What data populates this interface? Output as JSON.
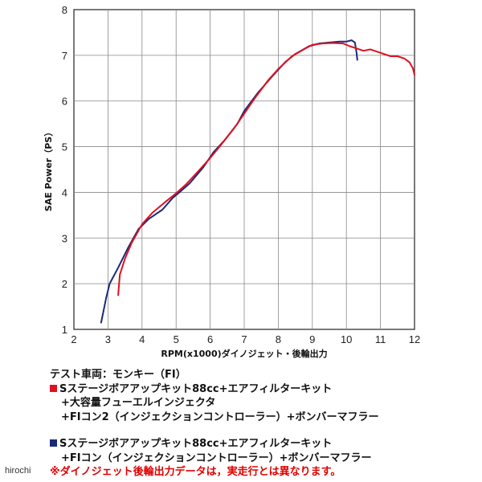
{
  "chart_data": {
    "type": "line",
    "xlabel": "RPM(x1000)ダイノジェット・後輪出力",
    "ylabel": "SAE Power（PS）",
    "xlim": [
      2,
      12
    ],
    "ylim": [
      1,
      8
    ],
    "x_ticks": [
      "2",
      "3",
      "4",
      "5",
      "6",
      "7",
      "8",
      "9",
      "10",
      "11",
      "12"
    ],
    "y_ticks": [
      "1",
      "2",
      "3",
      "4",
      "5",
      "6",
      "7",
      "8"
    ],
    "grid": true,
    "series": [
      {
        "color": "#e01020",
        "points": [
          [
            3.3,
            1.75
          ],
          [
            3.35,
            2.2
          ],
          [
            3.5,
            2.55
          ],
          [
            3.7,
            2.9
          ],
          [
            4.0,
            3.3
          ],
          [
            4.3,
            3.55
          ],
          [
            4.7,
            3.8
          ],
          [
            5.0,
            3.98
          ],
          [
            5.3,
            4.18
          ],
          [
            5.6,
            4.42
          ],
          [
            6.0,
            4.75
          ],
          [
            6.3,
            5.02
          ],
          [
            6.7,
            5.4
          ],
          [
            7.0,
            5.72
          ],
          [
            7.3,
            6.05
          ],
          [
            7.7,
            6.45
          ],
          [
            8.0,
            6.7
          ],
          [
            8.4,
            6.98
          ],
          [
            8.8,
            7.15
          ],
          [
            9.0,
            7.23
          ],
          [
            9.3,
            7.26
          ],
          [
            9.6,
            7.27
          ],
          [
            9.9,
            7.26
          ],
          [
            10.1,
            7.2
          ],
          [
            10.3,
            7.15
          ],
          [
            10.5,
            7.1
          ],
          [
            10.7,
            7.13
          ],
          [
            10.9,
            7.08
          ],
          [
            11.1,
            7.03
          ],
          [
            11.3,
            6.98
          ],
          [
            11.5,
            6.98
          ],
          [
            11.7,
            6.93
          ],
          [
            11.85,
            6.85
          ],
          [
            11.95,
            6.72
          ],
          [
            12.0,
            6.57
          ]
        ]
      },
      {
        "color": "#1a2a7a",
        "points": [
          [
            2.8,
            1.15
          ],
          [
            2.95,
            1.7
          ],
          [
            3.05,
            2.0
          ],
          [
            3.3,
            2.35
          ],
          [
            3.6,
            2.8
          ],
          [
            3.9,
            3.2
          ],
          [
            4.2,
            3.42
          ],
          [
            4.6,
            3.62
          ],
          [
            4.9,
            3.88
          ],
          [
            5.1,
            4.0
          ],
          [
            5.4,
            4.2
          ],
          [
            5.8,
            4.55
          ],
          [
            6.1,
            4.88
          ],
          [
            6.4,
            5.12
          ],
          [
            6.8,
            5.5
          ],
          [
            7.0,
            5.78
          ],
          [
            7.4,
            6.18
          ],
          [
            7.8,
            6.52
          ],
          [
            8.2,
            6.85
          ],
          [
            8.5,
            7.03
          ],
          [
            8.9,
            7.2
          ],
          [
            9.2,
            7.26
          ],
          [
            9.5,
            7.28
          ],
          [
            9.8,
            7.3
          ],
          [
            10.0,
            7.3
          ],
          [
            10.15,
            7.33
          ],
          [
            10.25,
            7.28
          ],
          [
            10.3,
            7.05
          ],
          [
            10.32,
            6.9
          ]
        ]
      }
    ]
  },
  "legend": {
    "test_vehicle": "テスト車両：モンキー（FI）",
    "red_line1": "Sステージボアアップキット88cc+エアフィルターキット",
    "red_line2": "+大容量フューエルインジェクタ",
    "red_line3": "+FIコン2（インジェクションコントローラー）+ボンバーマフラー",
    "blue_line1": "Sステージボアアップキット88cc+エアフィルターキット",
    "blue_line2": "+FIコン（インジェクションコントローラー）+ボンバーマフラー",
    "note": "※ダイノジェット後輪出力データは，実走行とは異なります。",
    "red_color": "#e01020",
    "blue_color": "#1a2a7a"
  },
  "watermark": "hirochi"
}
